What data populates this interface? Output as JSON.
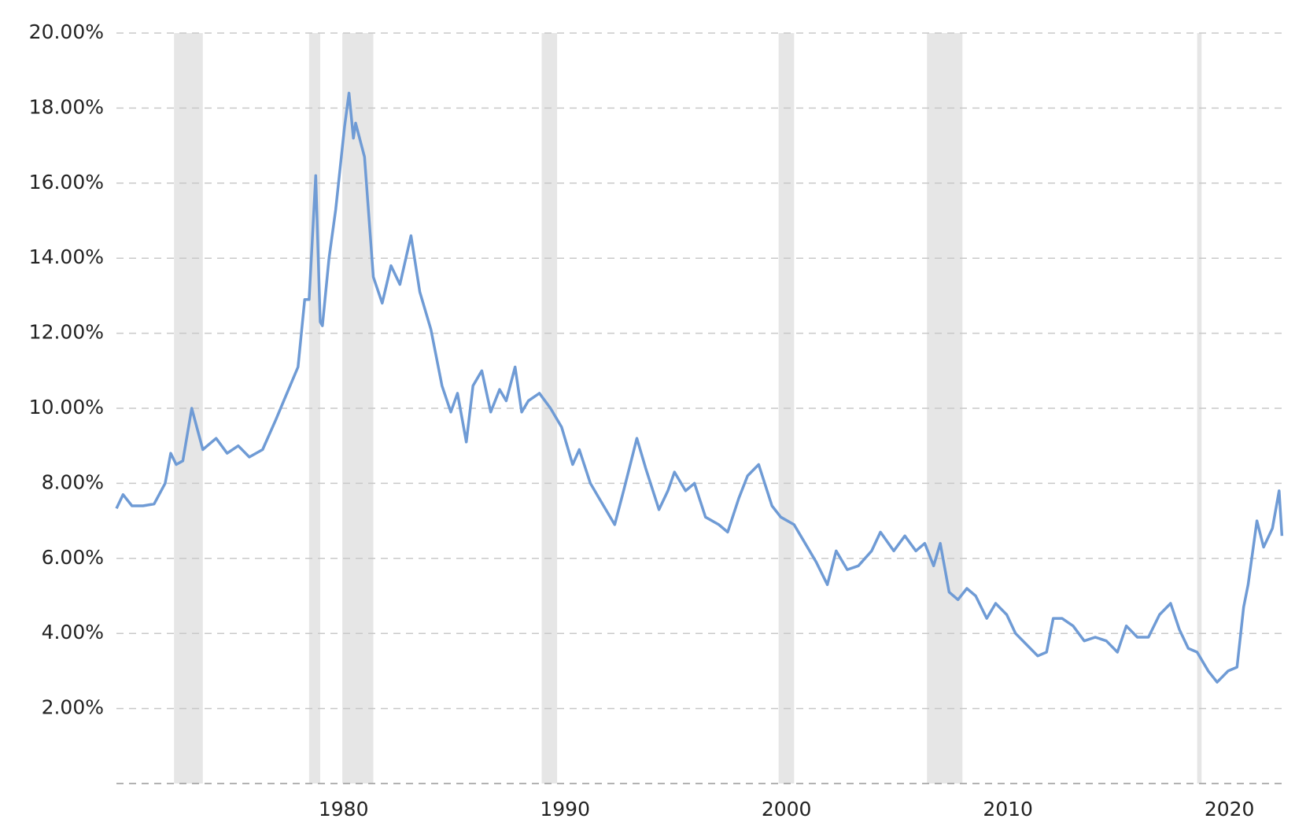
{
  "chart_data": {
    "type": "line",
    "x": [
      1971.3,
      1971.6,
      1972.0,
      1972.5,
      1973.0,
      1973.5,
      1973.75,
      1974.0,
      1974.3,
      1974.7,
      1975.2,
      1975.8,
      1976.3,
      1976.8,
      1977.3,
      1977.9,
      1978.5,
      1979.0,
      1979.5,
      1979.8,
      1980.0,
      1980.3,
      1980.5,
      1980.6,
      1980.9,
      1981.2,
      1981.6,
      1981.8,
      1982.0,
      1982.1,
      1982.5,
      1982.9,
      1983.3,
      1983.7,
      1984.1,
      1984.6,
      1985.0,
      1985.5,
      1986.0,
      1986.4,
      1986.7,
      1987.1,
      1987.4,
      1987.8,
      1988.2,
      1988.6,
      1988.9,
      1989.3,
      1989.6,
      1989.9,
      1990.4,
      1990.9,
      1991.4,
      1991.9,
      1992.2,
      1992.7,
      1993.2,
      1993.8,
      1994.2,
      1994.8,
      1995.2,
      1995.8,
      1996.2,
      1996.5,
      1997.0,
      1997.4,
      1997.9,
      1998.5,
      1998.9,
      1999.4,
      1999.8,
      2000.3,
      2000.9,
      2001.3,
      2001.9,
      2002.4,
      2002.9,
      2003.4,
      2003.8,
      2004.3,
      2004.8,
      2005.4,
      2005.8,
      2006.4,
      2006.9,
      2007.4,
      2007.8,
      2008.2,
      2008.5,
      2008.9,
      2009.3,
      2009.7,
      2010.1,
      2010.6,
      2011.0,
      2011.5,
      2011.9,
      2012.4,
      2012.9,
      2013.3,
      2013.6,
      2014.0,
      2014.5,
      2015.0,
      2015.5,
      2016.0,
      2016.5,
      2016.9,
      2017.4,
      2017.9,
      2018.4,
      2018.9,
      2019.3,
      2019.7,
      2020.1,
      2020.6,
      2021.0,
      2021.5,
      2021.9,
      2022.2,
      2022.4,
      2022.8,
      2023.1,
      2023.5,
      2023.8,
      2023.93
    ],
    "values": [
      7.33,
      7.7,
      7.4,
      7.4,
      7.45,
      8.0,
      8.8,
      8.5,
      8.6,
      10.0,
      8.9,
      9.2,
      8.8,
      9.0,
      8.7,
      8.9,
      9.7,
      10.4,
      11.1,
      12.9,
      12.9,
      16.2,
      12.3,
      12.2,
      14.0,
      15.3,
      17.5,
      18.4,
      17.2,
      17.6,
      16.7,
      13.5,
      12.8,
      13.8,
      13.3,
      14.6,
      13.1,
      12.1,
      10.6,
      9.9,
      10.4,
      9.1,
      10.6,
      11.0,
      9.9,
      10.5,
      10.2,
      11.1,
      9.9,
      10.2,
      10.4,
      10.0,
      9.5,
      8.5,
      8.9,
      8.0,
      7.5,
      6.9,
      7.8,
      9.2,
      8.4,
      7.3,
      7.8,
      8.3,
      7.8,
      8.0,
      7.1,
      6.9,
      6.7,
      7.6,
      8.2,
      8.5,
      7.4,
      7.1,
      6.9,
      6.4,
      5.9,
      5.3,
      6.2,
      5.7,
      5.8,
      6.2,
      6.7,
      6.2,
      6.6,
      6.2,
      6.4,
      5.8,
      6.4,
      5.1,
      4.9,
      5.2,
      5.0,
      4.4,
      4.8,
      4.5,
      4.0,
      3.7,
      3.4,
      3.5,
      4.4,
      4.4,
      4.2,
      3.8,
      3.9,
      3.8,
      3.5,
      4.2,
      3.9,
      3.9,
      4.5,
      4.8,
      4.1,
      3.6,
      3.5,
      3.0,
      2.7,
      3.0,
      3.1,
      4.7,
      5.3,
      7.0,
      6.3,
      6.8,
      7.8,
      6.6
    ],
    "color": "#6f9bd5",
    "recessions": [
      [
        1973.9,
        1975.2
      ],
      [
        1980.0,
        1980.5
      ],
      [
        1981.5,
        1982.9
      ],
      [
        1990.5,
        1991.2
      ],
      [
        2001.2,
        2001.9
      ],
      [
        2007.9,
        2009.5
      ],
      [
        2020.1,
        2020.3
      ]
    ],
    "xlim": [
      1971.3,
      2023.95
    ],
    "xticks": [
      1980,
      1990,
      2000,
      2010,
      2020
    ],
    "ylim": [
      0,
      20
    ],
    "yticks": [
      {
        "value": 2,
        "label": "2.00%"
      },
      {
        "value": 4,
        "label": "4.00%"
      },
      {
        "value": 6,
        "label": "6.00%"
      },
      {
        "value": 8,
        "label": "8.00%"
      },
      {
        "value": 10,
        "label": "10.00%"
      },
      {
        "value": 12,
        "label": "12.00%"
      },
      {
        "value": 14,
        "label": "14.00%"
      },
      {
        "value": 16,
        "label": "16.00%"
      },
      {
        "value": 18,
        "label": "18.00%"
      },
      {
        "value": 20,
        "label": "20.00%"
      }
    ],
    "grid": true
  }
}
